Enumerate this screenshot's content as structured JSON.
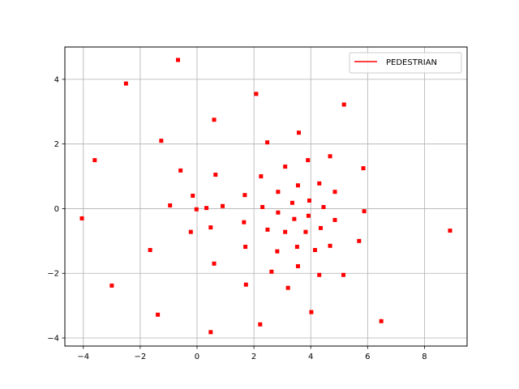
{
  "chart_data": {
    "type": "scatter",
    "title": "",
    "xlabel": "",
    "ylabel": "",
    "xlim": [
      -4.65,
      9.5
    ],
    "ylim": [
      -4.25,
      5.0
    ],
    "xticks": [
      -4,
      -2,
      0,
      2,
      4,
      6,
      8
    ],
    "yticks": [
      -4,
      -2,
      0,
      2,
      4
    ],
    "xtick_labels": [
      "−4",
      "−2",
      "0",
      "2",
      "4",
      "6",
      "8"
    ],
    "ytick_labels": [
      "−4",
      "−2",
      "0",
      "2",
      "4"
    ],
    "grid": true,
    "legend_position": "top-right",
    "series": [
      {
        "name": "PEDESTRIAN",
        "color": "#ff0000",
        "marker": "square",
        "points": [
          [
            -0.67,
            4.6
          ],
          [
            -2.5,
            3.87
          ],
          [
            2.08,
            3.55
          ],
          [
            5.17,
            3.22
          ],
          [
            0.6,
            2.75
          ],
          [
            3.58,
            2.35
          ],
          [
            -1.26,
            2.1
          ],
          [
            2.47,
            2.05
          ],
          [
            -3.6,
            1.5
          ],
          [
            4.68,
            1.62
          ],
          [
            3.9,
            1.5
          ],
          [
            3.1,
            1.3
          ],
          [
            5.85,
            1.25
          ],
          [
            -0.58,
            1.18
          ],
          [
            0.65,
            1.05
          ],
          [
            2.25,
            1.0
          ],
          [
            4.3,
            0.78
          ],
          [
            3.55,
            0.72
          ],
          [
            2.85,
            0.52
          ],
          [
            4.85,
            0.52
          ],
          [
            -0.15,
            0.4
          ],
          [
            1.68,
            0.42
          ],
          [
            3.95,
            0.25
          ],
          [
            3.35,
            0.18
          ],
          [
            -0.95,
            0.1
          ],
          [
            0.9,
            0.08
          ],
          [
            2.3,
            0.05
          ],
          [
            4.45,
            0.05
          ],
          [
            0.33,
            0.02
          ],
          [
            -0.02,
            -0.02
          ],
          [
            5.88,
            -0.08
          ],
          [
            2.85,
            -0.12
          ],
          [
            3.92,
            -0.22
          ],
          [
            3.42,
            -0.32
          ],
          [
            4.85,
            -0.35
          ],
          [
            -4.05,
            -0.3
          ],
          [
            1.65,
            -0.42
          ],
          [
            0.48,
            -0.58
          ],
          [
            4.35,
            -0.6
          ],
          [
            2.48,
            -0.65
          ],
          [
            3.1,
            -0.72
          ],
          [
            3.82,
            -0.72
          ],
          [
            8.9,
            -0.68
          ],
          [
            -0.22,
            -0.72
          ],
          [
            5.7,
            -1.0
          ],
          [
            4.68,
            -1.15
          ],
          [
            1.7,
            -1.18
          ],
          [
            3.52,
            -1.18
          ],
          [
            -1.65,
            -1.28
          ],
          [
            4.15,
            -1.28
          ],
          [
            2.82,
            -1.32
          ],
          [
            0.6,
            -1.7
          ],
          [
            3.55,
            -1.78
          ],
          [
            2.62,
            -1.95
          ],
          [
            4.3,
            -2.05
          ],
          [
            5.15,
            -2.05
          ],
          [
            1.72,
            -2.35
          ],
          [
            -3.0,
            -2.38
          ],
          [
            3.2,
            -2.45
          ],
          [
            -1.38,
            -3.28
          ],
          [
            4.02,
            -3.2
          ],
          [
            6.48,
            -3.48
          ],
          [
            2.22,
            -3.58
          ],
          [
            0.48,
            -3.82
          ]
        ]
      }
    ]
  }
}
